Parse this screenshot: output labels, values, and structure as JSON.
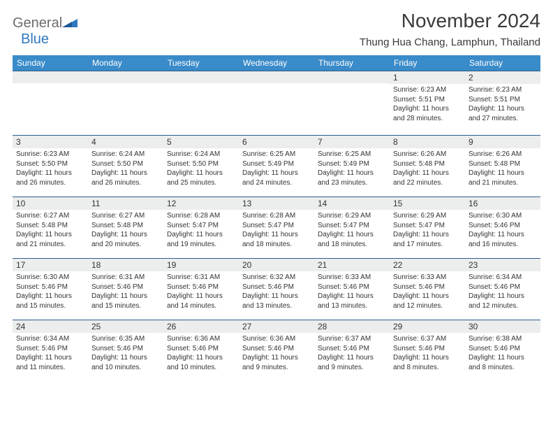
{
  "branding": {
    "logo_word1": "General",
    "logo_word2": "Blue",
    "logo_color_gray": "#6d6d6d",
    "logo_color_blue": "#2f78c2",
    "triangle_color": "#2f78c2"
  },
  "header": {
    "month_title": "November 2024",
    "location": "Thung Hua Chang, Lamphun, Thailand"
  },
  "styling": {
    "header_bg": "#3a8bc9",
    "header_text": "#ffffff",
    "daynum_bg": "#eceded",
    "cell_border": "#2f5d8a",
    "body_text": "#333333",
    "page_bg": "#ffffff",
    "month_title_fontsize": 28,
    "location_fontsize": 15,
    "weekday_fontsize": 12,
    "daynum_fontsize": 12,
    "details_fontsize": 10
  },
  "weekdays": [
    "Sunday",
    "Monday",
    "Tuesday",
    "Wednesday",
    "Thursday",
    "Friday",
    "Saturday"
  ],
  "weeks": [
    [
      {
        "day": "",
        "sunrise": "",
        "sunset": "",
        "daylight": ""
      },
      {
        "day": "",
        "sunrise": "",
        "sunset": "",
        "daylight": ""
      },
      {
        "day": "",
        "sunrise": "",
        "sunset": "",
        "daylight": ""
      },
      {
        "day": "",
        "sunrise": "",
        "sunset": "",
        "daylight": ""
      },
      {
        "day": "",
        "sunrise": "",
        "sunset": "",
        "daylight": ""
      },
      {
        "day": "1",
        "sunrise": "Sunrise: 6:23 AM",
        "sunset": "Sunset: 5:51 PM",
        "daylight": "Daylight: 11 hours and 28 minutes."
      },
      {
        "day": "2",
        "sunrise": "Sunrise: 6:23 AM",
        "sunset": "Sunset: 5:51 PM",
        "daylight": "Daylight: 11 hours and 27 minutes."
      }
    ],
    [
      {
        "day": "3",
        "sunrise": "Sunrise: 6:23 AM",
        "sunset": "Sunset: 5:50 PM",
        "daylight": "Daylight: 11 hours and 26 minutes."
      },
      {
        "day": "4",
        "sunrise": "Sunrise: 6:24 AM",
        "sunset": "Sunset: 5:50 PM",
        "daylight": "Daylight: 11 hours and 26 minutes."
      },
      {
        "day": "5",
        "sunrise": "Sunrise: 6:24 AM",
        "sunset": "Sunset: 5:50 PM",
        "daylight": "Daylight: 11 hours and 25 minutes."
      },
      {
        "day": "6",
        "sunrise": "Sunrise: 6:25 AM",
        "sunset": "Sunset: 5:49 PM",
        "daylight": "Daylight: 11 hours and 24 minutes."
      },
      {
        "day": "7",
        "sunrise": "Sunrise: 6:25 AM",
        "sunset": "Sunset: 5:49 PM",
        "daylight": "Daylight: 11 hours and 23 minutes."
      },
      {
        "day": "8",
        "sunrise": "Sunrise: 6:26 AM",
        "sunset": "Sunset: 5:48 PM",
        "daylight": "Daylight: 11 hours and 22 minutes."
      },
      {
        "day": "9",
        "sunrise": "Sunrise: 6:26 AM",
        "sunset": "Sunset: 5:48 PM",
        "daylight": "Daylight: 11 hours and 21 minutes."
      }
    ],
    [
      {
        "day": "10",
        "sunrise": "Sunrise: 6:27 AM",
        "sunset": "Sunset: 5:48 PM",
        "daylight": "Daylight: 11 hours and 21 minutes."
      },
      {
        "day": "11",
        "sunrise": "Sunrise: 6:27 AM",
        "sunset": "Sunset: 5:48 PM",
        "daylight": "Daylight: 11 hours and 20 minutes."
      },
      {
        "day": "12",
        "sunrise": "Sunrise: 6:28 AM",
        "sunset": "Sunset: 5:47 PM",
        "daylight": "Daylight: 11 hours and 19 minutes."
      },
      {
        "day": "13",
        "sunrise": "Sunrise: 6:28 AM",
        "sunset": "Sunset: 5:47 PM",
        "daylight": "Daylight: 11 hours and 18 minutes."
      },
      {
        "day": "14",
        "sunrise": "Sunrise: 6:29 AM",
        "sunset": "Sunset: 5:47 PM",
        "daylight": "Daylight: 11 hours and 18 minutes."
      },
      {
        "day": "15",
        "sunrise": "Sunrise: 6:29 AM",
        "sunset": "Sunset: 5:47 PM",
        "daylight": "Daylight: 11 hours and 17 minutes."
      },
      {
        "day": "16",
        "sunrise": "Sunrise: 6:30 AM",
        "sunset": "Sunset: 5:46 PM",
        "daylight": "Daylight: 11 hours and 16 minutes."
      }
    ],
    [
      {
        "day": "17",
        "sunrise": "Sunrise: 6:30 AM",
        "sunset": "Sunset: 5:46 PM",
        "daylight": "Daylight: 11 hours and 15 minutes."
      },
      {
        "day": "18",
        "sunrise": "Sunrise: 6:31 AM",
        "sunset": "Sunset: 5:46 PM",
        "daylight": "Daylight: 11 hours and 15 minutes."
      },
      {
        "day": "19",
        "sunrise": "Sunrise: 6:31 AM",
        "sunset": "Sunset: 5:46 PM",
        "daylight": "Daylight: 11 hours and 14 minutes."
      },
      {
        "day": "20",
        "sunrise": "Sunrise: 6:32 AM",
        "sunset": "Sunset: 5:46 PM",
        "daylight": "Daylight: 11 hours and 13 minutes."
      },
      {
        "day": "21",
        "sunrise": "Sunrise: 6:33 AM",
        "sunset": "Sunset: 5:46 PM",
        "daylight": "Daylight: 11 hours and 13 minutes."
      },
      {
        "day": "22",
        "sunrise": "Sunrise: 6:33 AM",
        "sunset": "Sunset: 5:46 PM",
        "daylight": "Daylight: 11 hours and 12 minutes."
      },
      {
        "day": "23",
        "sunrise": "Sunrise: 6:34 AM",
        "sunset": "Sunset: 5:46 PM",
        "daylight": "Daylight: 11 hours and 12 minutes."
      }
    ],
    [
      {
        "day": "24",
        "sunrise": "Sunrise: 6:34 AM",
        "sunset": "Sunset: 5:46 PM",
        "daylight": "Daylight: 11 hours and 11 minutes."
      },
      {
        "day": "25",
        "sunrise": "Sunrise: 6:35 AM",
        "sunset": "Sunset: 5:46 PM",
        "daylight": "Daylight: 11 hours and 10 minutes."
      },
      {
        "day": "26",
        "sunrise": "Sunrise: 6:36 AM",
        "sunset": "Sunset: 5:46 PM",
        "daylight": "Daylight: 11 hours and 10 minutes."
      },
      {
        "day": "27",
        "sunrise": "Sunrise: 6:36 AM",
        "sunset": "Sunset: 5:46 PM",
        "daylight": "Daylight: 11 hours and 9 minutes."
      },
      {
        "day": "28",
        "sunrise": "Sunrise: 6:37 AM",
        "sunset": "Sunset: 5:46 PM",
        "daylight": "Daylight: 11 hours and 9 minutes."
      },
      {
        "day": "29",
        "sunrise": "Sunrise: 6:37 AM",
        "sunset": "Sunset: 5:46 PM",
        "daylight": "Daylight: 11 hours and 8 minutes."
      },
      {
        "day": "30",
        "sunrise": "Sunrise: 6:38 AM",
        "sunset": "Sunset: 5:46 PM",
        "daylight": "Daylight: 11 hours and 8 minutes."
      }
    ]
  ]
}
